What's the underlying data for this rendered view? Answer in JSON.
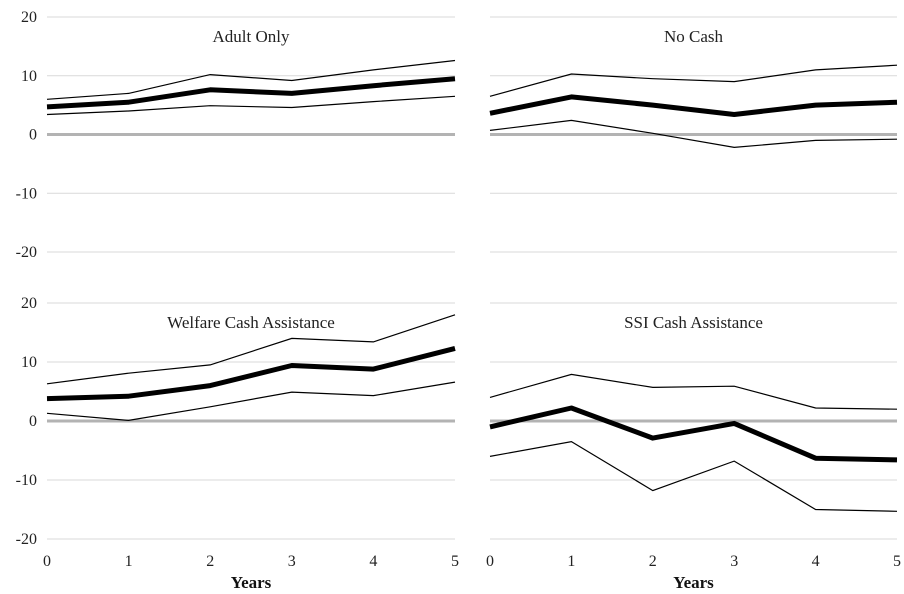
{
  "chart_data": [
    {
      "type": "line",
      "title": "Adult Only",
      "xlabel": "",
      "ylabel": "",
      "x": [
        0,
        1,
        2,
        3,
        4,
        5
      ],
      "ylim": [
        -20,
        20
      ],
      "yticks": [
        20,
        10,
        0,
        -10,
        -20
      ],
      "series": [
        {
          "role": "upper",
          "values": [
            6.0,
            7.0,
            10.2,
            9.2,
            11.0,
            12.6
          ]
        },
        {
          "role": "estimate",
          "values": [
            4.7,
            5.5,
            7.6,
            7.0,
            8.3,
            9.5
          ]
        },
        {
          "role": "lower",
          "values": [
            3.4,
            4.0,
            4.9,
            4.6,
            5.6,
            6.5
          ]
        }
      ]
    },
    {
      "type": "line",
      "title": "No Cash",
      "xlabel": "",
      "ylabel": "",
      "x": [
        0,
        1,
        2,
        3,
        4,
        5
      ],
      "ylim": [
        -20,
        20
      ],
      "series": [
        {
          "role": "upper",
          "values": [
            6.5,
            10.3,
            9.5,
            9.0,
            11.0,
            11.8
          ]
        },
        {
          "role": "estimate",
          "values": [
            3.6,
            6.4,
            5.0,
            3.4,
            5.0,
            5.5
          ]
        },
        {
          "role": "lower",
          "values": [
            0.7,
            2.4,
            0.2,
            -2.2,
            -1.0,
            -0.8
          ]
        }
      ]
    },
    {
      "type": "line",
      "title": "Welfare Cash Assistance",
      "xlabel": "Years",
      "ylabel": "",
      "x": [
        0,
        1,
        2,
        3,
        4,
        5
      ],
      "xticks": [
        "0",
        "1",
        "2",
        "3",
        "4",
        "5"
      ],
      "ylim": [
        -20,
        20
      ],
      "yticks": [
        20,
        10,
        0,
        -10,
        -20
      ],
      "series": [
        {
          "role": "upper",
          "values": [
            6.3,
            8.1,
            9.5,
            14.0,
            13.4,
            18.0
          ]
        },
        {
          "role": "estimate",
          "values": [
            3.8,
            4.2,
            6.0,
            9.4,
            8.8,
            12.3
          ]
        },
        {
          "role": "lower",
          "values": [
            1.3,
            0.1,
            2.4,
            4.9,
            4.3,
            6.6
          ]
        }
      ]
    },
    {
      "type": "line",
      "title": "SSI Cash Assistance",
      "xlabel": "Years",
      "ylabel": "",
      "x": [
        0,
        1,
        2,
        3,
        4,
        5
      ],
      "xticks": [
        "0",
        "1",
        "2",
        "3",
        "4",
        "5"
      ],
      "ylim": [
        -20,
        20
      ],
      "series": [
        {
          "role": "upper",
          "values": [
            4.0,
            7.9,
            5.7,
            5.9,
            2.2,
            2.0
          ]
        },
        {
          "role": "estimate",
          "values": [
            -1.0,
            2.2,
            -2.9,
            -0.4,
            -6.3,
            -6.6
          ]
        },
        {
          "role": "lower",
          "values": [
            -6.0,
            -3.5,
            -11.8,
            -6.8,
            -15.0,
            -15.3
          ]
        }
      ]
    }
  ]
}
